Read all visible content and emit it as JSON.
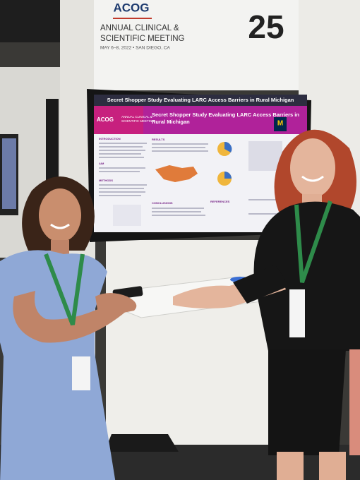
{
  "booth": {
    "logo": "ACOG",
    "meeting": [
      "ANNUAL CLINICAL &",
      "SCIENTIFIC MEETING"
    ],
    "dates": "MAY 6–8, 2022 • SAN DIEGO, CA",
    "number": "25"
  },
  "screen": {
    "title_bar": "Secret Shopper Study Evaluating LARC Access Barriers in Rural Michigan",
    "poster_title": [
      "Secret Shopper Study Evaluating LARC Access Barriers in",
      "Rural Michigan"
    ],
    "logo": "ACOG",
    "meeting": [
      "ANNUAL CLINICAL &",
      "SCIENTIFIC MEETING"
    ],
    "sections": [
      "INTRODUCTION",
      "RESULTS",
      "AIM",
      "METHODS",
      "CONCLUSIONS",
      "REFERENCES"
    ]
  }
}
